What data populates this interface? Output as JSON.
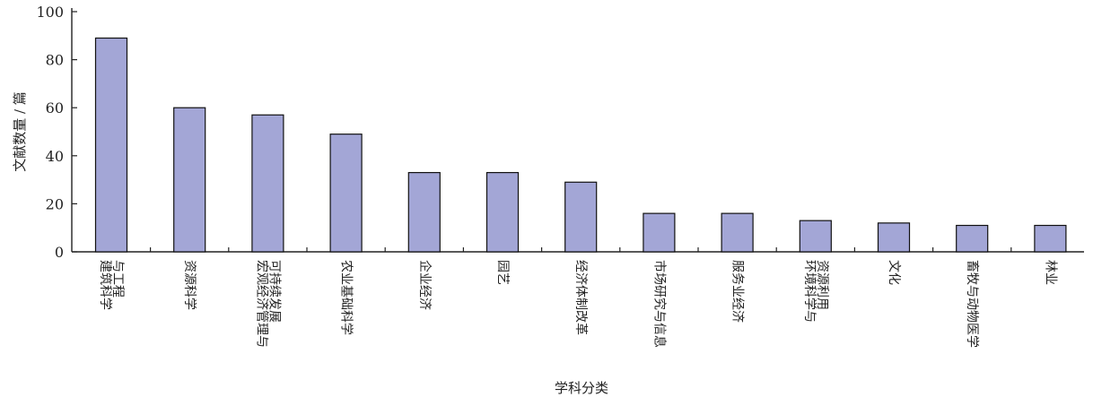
{
  "chart_data": {
    "type": "bar",
    "title": "",
    "xlabel": "学科分类",
    "ylabel": "文献数量 / 篇",
    "ylim": [
      0,
      100
    ],
    "yticks": [
      0,
      20,
      40,
      60,
      80,
      100
    ],
    "grid": false,
    "legend": "none",
    "bar_color": "#a3a6d6",
    "categories": [
      [
        "建筑科学",
        "与工程"
      ],
      [
        "资源科学"
      ],
      [
        "宏观经济管理与",
        "可持续发展"
      ],
      [
        "农业基础科学"
      ],
      [
        "企业经济"
      ],
      [
        "园艺"
      ],
      [
        "经济体制改革"
      ],
      [
        "市场研究与信息"
      ],
      [
        "服务业经济"
      ],
      [
        "环境科学与",
        "资源利用"
      ],
      [
        "文化"
      ],
      [
        "畜牧与动物医学"
      ],
      [
        "林业"
      ]
    ],
    "values": [
      89,
      60,
      57,
      49,
      33,
      33,
      29,
      16,
      16,
      13,
      12,
      11,
      11
    ]
  }
}
